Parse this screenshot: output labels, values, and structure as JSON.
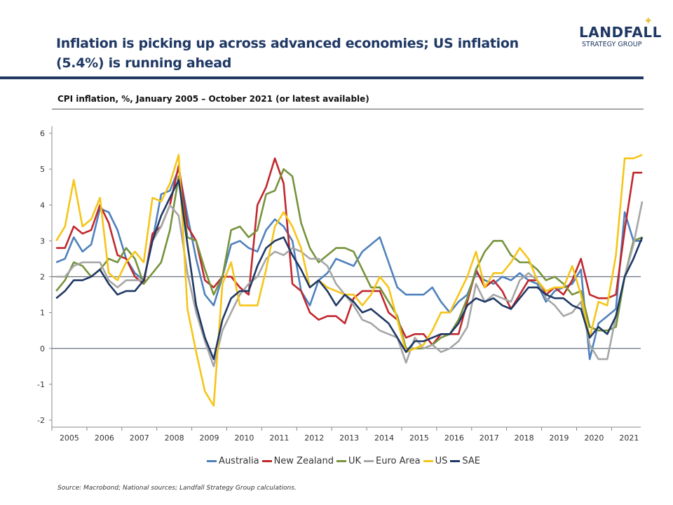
{
  "header": {
    "title": "Inflation is picking up across advanced economies; US inflation (5.4%) is running ahead",
    "logo_line1": "LANDFALL",
    "logo_line2": "STRATEGY GROUP"
  },
  "chart_data": {
    "type": "line",
    "title": "CPI inflation, %, January 2005 – October 2021 (or latest available)",
    "xlabel": "",
    "ylabel": "",
    "ylim": [
      -2,
      6
    ],
    "yticks": [
      "-2",
      "-1",
      "0",
      "1",
      "2",
      "3",
      "4",
      "5",
      "6"
    ],
    "xticks": [
      "2005",
      "2006",
      "2007",
      "2008",
      "2009",
      "2010",
      "2011",
      "2012",
      "2013",
      "2014",
      "2015",
      "2016",
      "2017",
      "2018",
      "2019",
      "2020",
      "2021"
    ],
    "reference_lines": [
      0,
      2
    ],
    "grid": false,
    "legend_position": "bottom",
    "x": [
      "2005-Q1",
      "2005-Q2",
      "2005-Q3",
      "2005-Q4",
      "2006-Q1",
      "2006-Q2",
      "2006-Q3",
      "2006-Q4",
      "2007-Q1",
      "2007-Q2",
      "2007-Q3",
      "2007-Q4",
      "2008-Q1",
      "2008-Q2",
      "2008-Q3",
      "2008-Q4",
      "2009-Q1",
      "2009-Q2",
      "2009-Q3",
      "2009-Q4",
      "2010-Q1",
      "2010-Q2",
      "2010-Q3",
      "2010-Q4",
      "2011-Q1",
      "2011-Q2",
      "2011-Q3",
      "2011-Q4",
      "2012-Q1",
      "2012-Q2",
      "2012-Q3",
      "2012-Q4",
      "2013-Q1",
      "2013-Q2",
      "2013-Q3",
      "2013-Q4",
      "2014-Q1",
      "2014-Q2",
      "2014-Q3",
      "2014-Q4",
      "2015-Q1",
      "2015-Q2",
      "2015-Q3",
      "2015-Q4",
      "2016-Q1",
      "2016-Q2",
      "2016-Q3",
      "2016-Q4",
      "2017-Q1",
      "2017-Q2",
      "2017-Q3",
      "2017-Q4",
      "2018-Q1",
      "2018-Q2",
      "2018-Q3",
      "2018-Q4",
      "2019-Q1",
      "2019-Q2",
      "2019-Q3",
      "2019-Q4",
      "2020-Q1",
      "2020-Q2",
      "2020-Q3",
      "2020-Q4",
      "2021-Q1",
      "2021-Q2",
      "2021-Q3",
      "2021-Q4"
    ],
    "series": [
      {
        "name": "Australia",
        "color": "#4f81bd",
        "values": [
          2.4,
          2.5,
          3.1,
          2.7,
          2.9,
          3.9,
          3.8,
          3.3,
          2.5,
          2.1,
          1.9,
          3.0,
          4.3,
          4.4,
          5.0,
          3.7,
          2.5,
          1.5,
          1.2,
          2.0,
          2.9,
          3.0,
          2.8,
          2.7,
          3.3,
          3.6,
          3.4,
          3.0,
          1.6,
          1.2,
          1.9,
          2.1,
          2.5,
          2.4,
          2.3,
          2.7,
          2.9,
          3.1,
          2.4,
          1.7,
          1.5,
          1.5,
          1.5,
          1.7,
          1.3,
          1.0,
          1.3,
          1.5,
          2.1,
          1.9,
          1.8,
          2.0,
          1.9,
          2.1,
          1.9,
          1.8,
          1.3,
          1.6,
          1.7,
          1.8,
          2.2,
          -0.3,
          0.7,
          0.9,
          1.1,
          3.8,
          3.0,
          3.0
        ]
      },
      {
        "name": "New Zealand",
        "color": "#c0282d",
        "values": [
          2.8,
          2.8,
          3.4,
          3.2,
          3.3,
          4.0,
          3.5,
          2.6,
          2.5,
          2.0,
          1.8,
          3.2,
          3.4,
          4.0,
          5.1,
          3.4,
          3.0,
          1.9,
          1.7,
          2.0,
          2.0,
          1.7,
          1.5,
          4.0,
          4.5,
          5.3,
          4.6,
          1.8,
          1.6,
          1.0,
          0.8,
          0.9,
          0.9,
          0.7,
          1.4,
          1.6,
          1.6,
          1.6,
          1.0,
          0.8,
          0.3,
          0.4,
          0.4,
          0.1,
          0.4,
          0.4,
          0.4,
          1.3,
          2.2,
          1.7,
          1.9,
          1.6,
          1.1,
          1.5,
          1.9,
          1.9,
          1.5,
          1.7,
          1.5,
          1.9,
          2.5,
          1.5,
          1.4,
          1.4,
          1.5,
          3.3,
          4.9,
          4.9
        ]
      },
      {
        "name": "UK",
        "color": "#77933c",
        "values": [
          1.6,
          1.9,
          2.4,
          2.3,
          2.0,
          2.2,
          2.5,
          2.4,
          2.8,
          2.5,
          1.8,
          2.1,
          2.4,
          3.3,
          4.8,
          3.1,
          3.0,
          2.2,
          1.5,
          2.0,
          3.3,
          3.4,
          3.1,
          3.3,
          4.3,
          4.4,
          5.0,
          4.8,
          3.5,
          2.8,
          2.4,
          2.6,
          2.8,
          2.8,
          2.7,
          2.2,
          1.7,
          1.7,
          1.3,
          0.9,
          0.0,
          0.0,
          0.0,
          0.1,
          0.3,
          0.4,
          0.8,
          1.4,
          2.2,
          2.7,
          3.0,
          3.0,
          2.6,
          2.4,
          2.4,
          2.2,
          1.9,
          2.0,
          1.8,
          1.5,
          1.6,
          0.6,
          0.5,
          0.5,
          0.6,
          2.0,
          3.0,
          3.1
        ]
      },
      {
        "name": "Euro Area",
        "color": "#a6a6a6",
        "values": [
          2.0,
          2.0,
          2.3,
          2.4,
          2.4,
          2.4,
          1.9,
          1.7,
          1.9,
          1.9,
          1.9,
          3.0,
          3.4,
          4.0,
          3.7,
          2.1,
          1.0,
          0.2,
          -0.5,
          0.5,
          1.0,
          1.5,
          1.8,
          2.0,
          2.5,
          2.7,
          2.6,
          2.8,
          2.7,
          2.5,
          2.5,
          2.3,
          1.8,
          1.5,
          1.2,
          0.8,
          0.7,
          0.5,
          0.4,
          0.3,
          -0.4,
          0.3,
          0.0,
          0.1,
          -0.1,
          0.0,
          0.2,
          0.6,
          1.8,
          1.3,
          1.5,
          1.4,
          1.3,
          1.9,
          2.1,
          1.9,
          1.4,
          1.2,
          0.9,
          1.0,
          1.3,
          0.1,
          -0.3,
          -0.3,
          0.9,
          2.0,
          2.9,
          4.1
        ]
      },
      {
        "name": "US",
        "color": "#f5c518",
        "values": [
          3.0,
          3.4,
          4.7,
          3.4,
          3.6,
          4.2,
          2.1,
          1.9,
          2.4,
          2.7,
          2.4,
          4.2,
          4.1,
          4.6,
          5.4,
          1.1,
          -0.1,
          -1.2,
          -1.6,
          1.8,
          2.4,
          1.2,
          1.2,
          1.2,
          2.2,
          3.4,
          3.8,
          3.4,
          2.8,
          1.7,
          1.9,
          1.7,
          1.6,
          1.5,
          1.5,
          1.2,
          1.5,
          2.0,
          1.7,
          0.8,
          -0.1,
          0.0,
          0.1,
          0.5,
          1.0,
          1.0,
          1.5,
          2.0,
          2.7,
          1.7,
          2.1,
          2.1,
          2.4,
          2.8,
          2.5,
          1.9,
          1.6,
          1.7,
          1.7,
          2.3,
          1.5,
          0.3,
          1.3,
          1.2,
          2.6,
          5.3,
          5.3,
          5.4
        ]
      },
      {
        "name": "SAE",
        "color": "#1f3864",
        "values": [
          1.4,
          1.6,
          1.9,
          1.9,
          2.0,
          2.2,
          1.8,
          1.5,
          1.6,
          1.6,
          1.9,
          3.0,
          3.7,
          4.2,
          4.7,
          2.9,
          1.2,
          0.3,
          -0.3,
          0.8,
          1.4,
          1.6,
          1.6,
          2.3,
          2.8,
          3.0,
          3.1,
          2.6,
          2.2,
          1.7,
          1.9,
          1.6,
          1.2,
          1.5,
          1.3,
          1.0,
          1.1,
          0.9,
          0.7,
          0.3,
          -0.1,
          0.2,
          0.2,
          0.3,
          0.4,
          0.4,
          0.7,
          1.2,
          1.4,
          1.3,
          1.4,
          1.2,
          1.1,
          1.4,
          1.7,
          1.7,
          1.5,
          1.4,
          1.4,
          1.2,
          1.1,
          0.3,
          0.6,
          0.4,
          0.9,
          2.0,
          2.5,
          3.1
        ]
      }
    ]
  },
  "footer": {
    "source": "Source: Macrobond;  National sources; Landfall Strategy Group calculations."
  }
}
